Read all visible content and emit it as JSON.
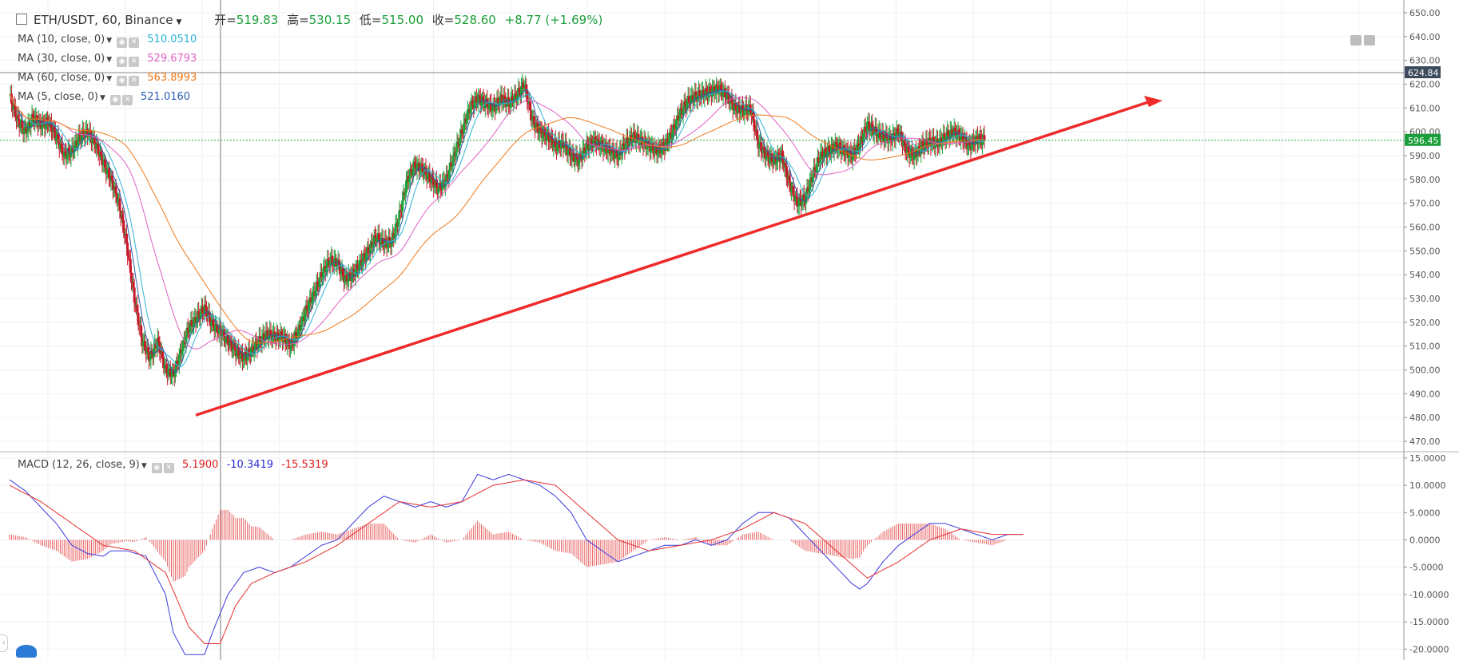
{
  "header": {
    "symbol": "ETH/USDT, 60, Binance",
    "open_label": "开=",
    "open": "519.83",
    "high_label": "高=",
    "high": "530.15",
    "low_label": "低=",
    "low": "515.00",
    "close_label": "收=",
    "close": "528.60",
    "change": "+8.77 (+1.69%)"
  },
  "indicators": [
    {
      "label": "MA (10, close, 0)",
      "value": "510.0510",
      "color": "#2fb3d6"
    },
    {
      "label": "MA (30, close, 0)",
      "value": "529.6793",
      "color": "#e060c4"
    },
    {
      "label": "MA (60, close, 0)",
      "value": "563.8993",
      "color": "#f07a1a"
    },
    {
      "label": "MA (5, close, 0)",
      "value": "521.0160",
      "color": "#2a5fb0"
    }
  ],
  "macd_legend": {
    "label": "MACD (12, 26, close, 9)",
    "v1": "5.1900",
    "v1_color": "#e02020",
    "v2": "-10.3419",
    "v2_color": "#2a2ad0",
    "v3": "-15.5319",
    "v3_color": "#e02020"
  },
  "chart_data": [
    {
      "type": "line",
      "title": "ETH/USDT, 60, Binance",
      "y_axis_ticks": [
        "650.00",
        "640.00",
        "630.00",
        "620.00",
        "610.00",
        "600.00",
        "590.00",
        "580.00",
        "570.00",
        "560.00",
        "550.00",
        "540.00",
        "530.00",
        "520.00",
        "510.00",
        "500.00",
        "490.00",
        "480.00",
        "470.00"
      ],
      "ylim": [
        466,
        652
      ],
      "price_labels": {
        "upper_line": "624.84",
        "last_price": "596.45"
      },
      "last_price_color": "#1a9e3a",
      "ma_colors": {
        "ma5": "#2a5fb0",
        "ma10": "#2fb3d6",
        "ma30": "#e060c4",
        "ma60": "#f07a1a"
      },
      "closes": [
        [
          0,
          615
        ],
        [
          8,
          605
        ],
        [
          16,
          600
        ],
        [
          24,
          606
        ],
        [
          32,
          603
        ],
        [
          40,
          604
        ],
        [
          48,
          598
        ],
        [
          56,
          590
        ],
        [
          64,
          592
        ],
        [
          72,
          598
        ],
        [
          80,
          600
        ],
        [
          88,
          595
        ],
        [
          96,
          587
        ],
        [
          104,
          580
        ],
        [
          112,
          570
        ],
        [
          120,
          553
        ],
        [
          128,
          530
        ],
        [
          136,
          512
        ],
        [
          144,
          505
        ],
        [
          152,
          512
        ],
        [
          160,
          500
        ],
        [
          168,
          498
        ],
        [
          176,
          508
        ],
        [
          184,
          518
        ],
        [
          192,
          522
        ],
        [
          200,
          526
        ],
        [
          208,
          519
        ],
        [
          216,
          516
        ],
        [
          224,
          512
        ],
        [
          232,
          508
        ],
        [
          240,
          505
        ],
        [
          248,
          508
        ],
        [
          256,
          512
        ],
        [
          264,
          515
        ],
        [
          272,
          514
        ],
        [
          280,
          514
        ],
        [
          288,
          510
        ],
        [
          296,
          516
        ],
        [
          304,
          525
        ],
        [
          312,
          532
        ],
        [
          320,
          540
        ],
        [
          328,
          546
        ],
        [
          336,
          545
        ],
        [
          344,
          538
        ],
        [
          352,
          540
        ],
        [
          360,
          545
        ],
        [
          368,
          550
        ],
        [
          376,
          556
        ],
        [
          384,
          553
        ],
        [
          392,
          554
        ],
        [
          400,
          565
        ],
        [
          408,
          580
        ],
        [
          416,
          586
        ],
        [
          424,
          584
        ],
        [
          432,
          580
        ],
        [
          440,
          576
        ],
        [
          448,
          580
        ],
        [
          456,
          590
        ],
        [
          464,
          600
        ],
        [
          472,
          610
        ],
        [
          480,
          614
        ],
        [
          488,
          612
        ],
        [
          496,
          610
        ],
        [
          504,
          614
        ],
        [
          512,
          612
        ],
        [
          520,
          615
        ],
        [
          528,
          620
        ],
        [
          536,
          605
        ],
        [
          544,
          600
        ],
        [
          552,
          598
        ],
        [
          560,
          594
        ],
        [
          568,
          595
        ],
        [
          576,
          590
        ],
        [
          584,
          588
        ],
        [
          592,
          594
        ],
        [
          600,
          596
        ],
        [
          608,
          594
        ],
        [
          616,
          592
        ],
        [
          624,
          590
        ],
        [
          632,
          595
        ],
        [
          640,
          598
        ],
        [
          648,
          596
        ],
        [
          656,
          594
        ],
        [
          664,
          592
        ],
        [
          672,
          594
        ],
        [
          680,
          600
        ],
        [
          688,
          608
        ],
        [
          696,
          613
        ],
        [
          704,
          615
        ],
        [
          712,
          616
        ],
        [
          720,
          617
        ],
        [
          728,
          618
        ],
        [
          736,
          615
        ],
        [
          744,
          610
        ],
        [
          752,
          609
        ],
        [
          760,
          610
        ],
        [
          768,
          595
        ],
        [
          776,
          590
        ],
        [
          784,
          588
        ],
        [
          792,
          590
        ],
        [
          800,
          578
        ],
        [
          808,
          570
        ],
        [
          816,
          572
        ],
        [
          824,
          582
        ],
        [
          832,
          590
        ],
        [
          840,
          592
        ],
        [
          848,
          594
        ],
        [
          856,
          592
        ],
        [
          864,
          590
        ],
        [
          872,
          595
        ],
        [
          880,
          603
        ],
        [
          888,
          600
        ],
        [
          896,
          598
        ],
        [
          904,
          597
        ],
        [
          912,
          600
        ],
        [
          920,
          592
        ],
        [
          928,
          590
        ],
        [
          936,
          594
        ],
        [
          944,
          596
        ],
        [
          952,
          595
        ],
        [
          960,
          598
        ],
        [
          968,
          600
        ],
        [
          976,
          598
        ],
        [
          984,
          594
        ],
        [
          992,
          597
        ],
        [
          1000,
          596.45
        ]
      ],
      "macd": [
        [
          0,
          11
        ],
        [
          16,
          9
        ],
        [
          32,
          6
        ],
        [
          48,
          3
        ],
        [
          64,
          -1
        ],
        [
          80,
          -2.5
        ],
        [
          96,
          -3
        ],
        [
          104,
          -2
        ],
        [
          120,
          -2
        ],
        [
          140,
          -3
        ],
        [
          160,
          -10
        ],
        [
          168,
          -17
        ],
        [
          180,
          -21
        ],
        [
          200,
          -21
        ],
        [
          208,
          -17
        ],
        [
          224,
          -10
        ],
        [
          240,
          -6
        ],
        [
          256,
          -5
        ],
        [
          272,
          -6
        ],
        [
          288,
          -5
        ],
        [
          304,
          -3
        ],
        [
          320,
          -1
        ],
        [
          336,
          0
        ],
        [
          352,
          3
        ],
        [
          368,
          6
        ],
        [
          384,
          8
        ],
        [
          400,
          7
        ],
        [
          416,
          6
        ],
        [
          432,
          7
        ],
        [
          448,
          6
        ],
        [
          464,
          7
        ],
        [
          480,
          12
        ],
        [
          496,
          11
        ],
        [
          512,
          12
        ],
        [
          528,
          11
        ],
        [
          544,
          10
        ],
        [
          560,
          8
        ],
        [
          576,
          5
        ],
        [
          592,
          0
        ],
        [
          608,
          -2
        ],
        [
          624,
          -4
        ],
        [
          640,
          -3
        ],
        [
          656,
          -2
        ],
        [
          672,
          -1
        ],
        [
          688,
          -1
        ],
        [
          704,
          0
        ],
        [
          720,
          -1
        ],
        [
          736,
          0
        ],
        [
          752,
          3
        ],
        [
          768,
          5
        ],
        [
          784,
          5
        ],
        [
          800,
          4
        ],
        [
          816,
          1
        ],
        [
          832,
          -2
        ],
        [
          848,
          -5
        ],
        [
          864,
          -8
        ],
        [
          872,
          -9
        ],
        [
          880,
          -8
        ],
        [
          896,
          -4
        ],
        [
          912,
          -1
        ],
        [
          928,
          1
        ],
        [
          944,
          3
        ],
        [
          960,
          3
        ],
        [
          976,
          2
        ],
        [
          992,
          1
        ],
        [
          1008,
          0
        ],
        [
          1024,
          1
        ],
        [
          1040,
          1
        ]
      ],
      "macd_signal": [
        [
          0,
          10
        ],
        [
          32,
          7
        ],
        [
          64,
          3
        ],
        [
          96,
          -1
        ],
        [
          128,
          -2
        ],
        [
          160,
          -6
        ],
        [
          184,
          -16
        ],
        [
          200,
          -19
        ],
        [
          216,
          -19
        ],
        [
          232,
          -12
        ],
        [
          248,
          -8
        ],
        [
          272,
          -6
        ],
        [
          304,
          -4
        ],
        [
          336,
          -1
        ],
        [
          368,
          3
        ],
        [
          400,
          7
        ],
        [
          432,
          6
        ],
        [
          464,
          7
        ],
        [
          496,
          10
        ],
        [
          528,
          11
        ],
        [
          560,
          10
        ],
        [
          592,
          5
        ],
        [
          624,
          0
        ],
        [
          656,
          -2
        ],
        [
          688,
          -1
        ],
        [
          720,
          0
        ],
        [
          752,
          2
        ],
        [
          784,
          5
        ],
        [
          816,
          3
        ],
        [
          848,
          -2
        ],
        [
          880,
          -7
        ],
        [
          912,
          -4
        ],
        [
          944,
          0
        ],
        [
          976,
          2
        ],
        [
          1008,
          1
        ],
        [
          1040,
          1
        ]
      ],
      "macd_axis_ticks": [
        "15.0000",
        "10.0000",
        "5.0000",
        "0.0000",
        "-5.0000",
        "-10.0000",
        "-15.0000",
        "-20.0000"
      ],
      "macd_ylim": [
        -22,
        16
      ]
    }
  ]
}
